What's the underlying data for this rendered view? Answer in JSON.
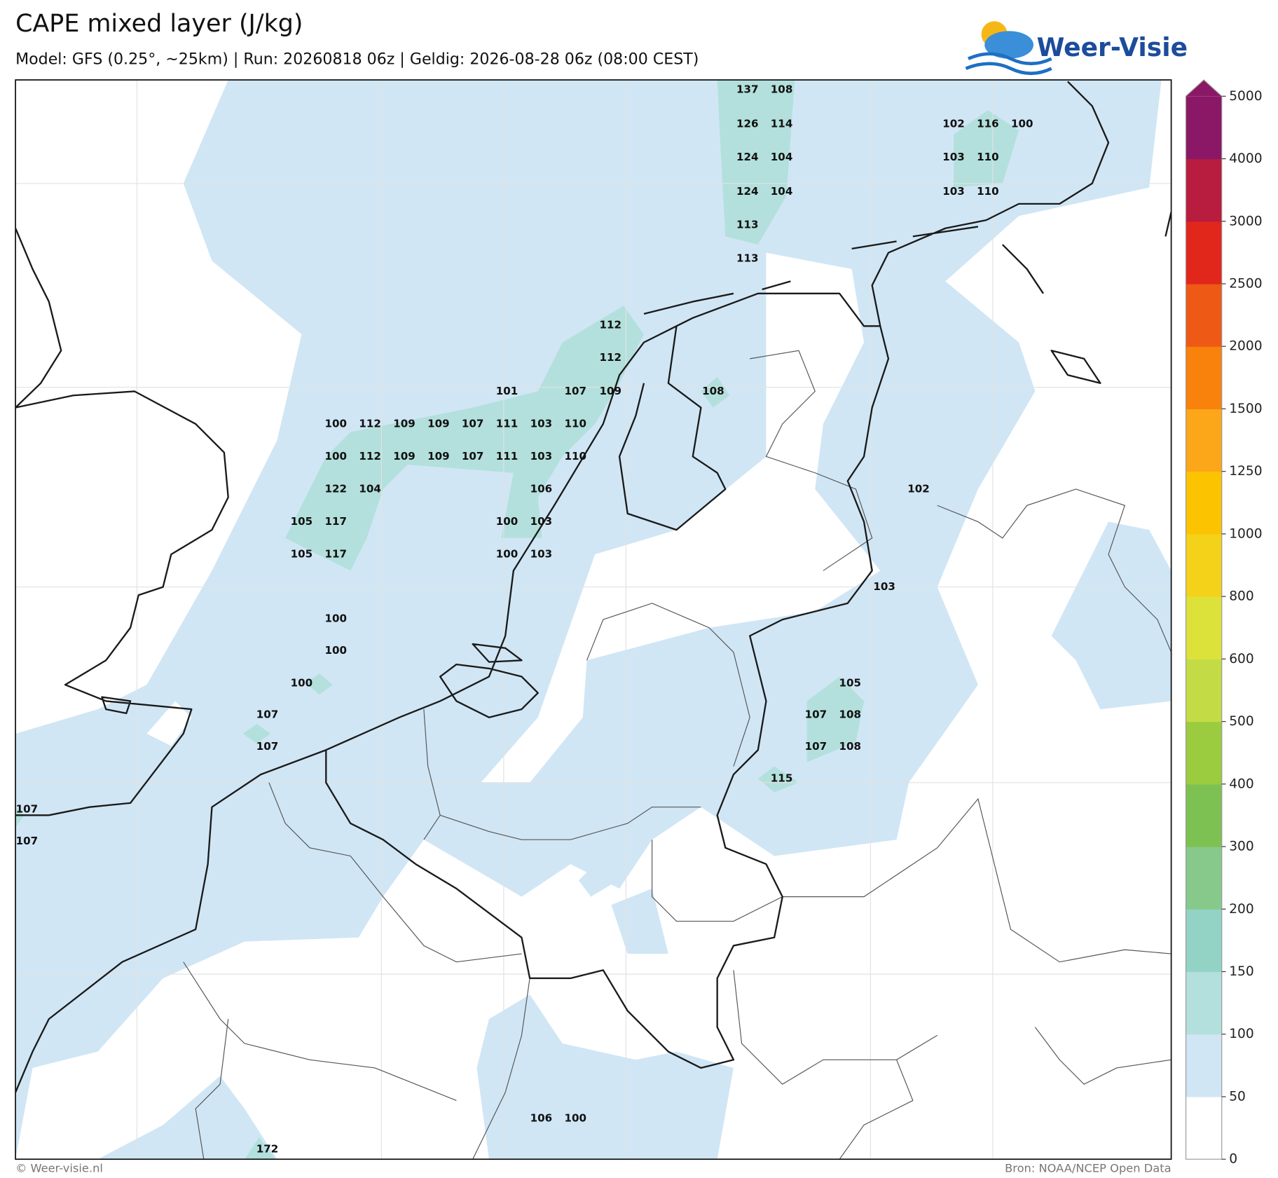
{
  "header": {
    "title": "CAPE mixed layer (J/kg)",
    "subtitle": "Model: GFS (0.25°, ~25km)  |  Run: 20260818 06z  |  Geldig: 2026-08-28 06z (08:00 CEST)",
    "logo": "Weer-Visie"
  },
  "colorbar": {
    "ticks": [
      0,
      50,
      100,
      150,
      200,
      300,
      400,
      500,
      600,
      800,
      1000,
      1250,
      1500,
      2000,
      2500,
      3000,
      4000,
      5000
    ],
    "colors": [
      "#ffffff",
      "#d0e6f5",
      "#b3e0dc",
      "#93d3c6",
      "#86c98b",
      "#7ec153",
      "#9bcb3e",
      "#c3dc45",
      "#dde23b",
      "#f4d21a",
      "#fcc300",
      "#fca61a",
      "#f8820c",
      "#ef5916",
      "#e1261c",
      "#b81c3e",
      "#8b1866"
    ],
    "extend_color": "#8b1866"
  },
  "map": {
    "labels": [
      137,
      108,
      126,
      114,
      124,
      104,
      124,
      104,
      113,
      113,
      102,
      116,
      100,
      103,
      110,
      103,
      110,
      112,
      112,
      101,
      107,
      109,
      108,
      100,
      112,
      109,
      109,
      107,
      111,
      103,
      110,
      100,
      112,
      109,
      109,
      107,
      111,
      103,
      110,
      122,
      104,
      106,
      102,
      105,
      117,
      100,
      103,
      105,
      117,
      100,
      103,
      103,
      100,
      100,
      100,
      105,
      107,
      107,
      108,
      107,
      107,
      108,
      115,
      107,
      107,
      106,
      100,
      172
    ]
  },
  "footer": {
    "copyright": "© Weer-visie.nl",
    "source": "Bron: NOAA/NCEP Open Data"
  }
}
